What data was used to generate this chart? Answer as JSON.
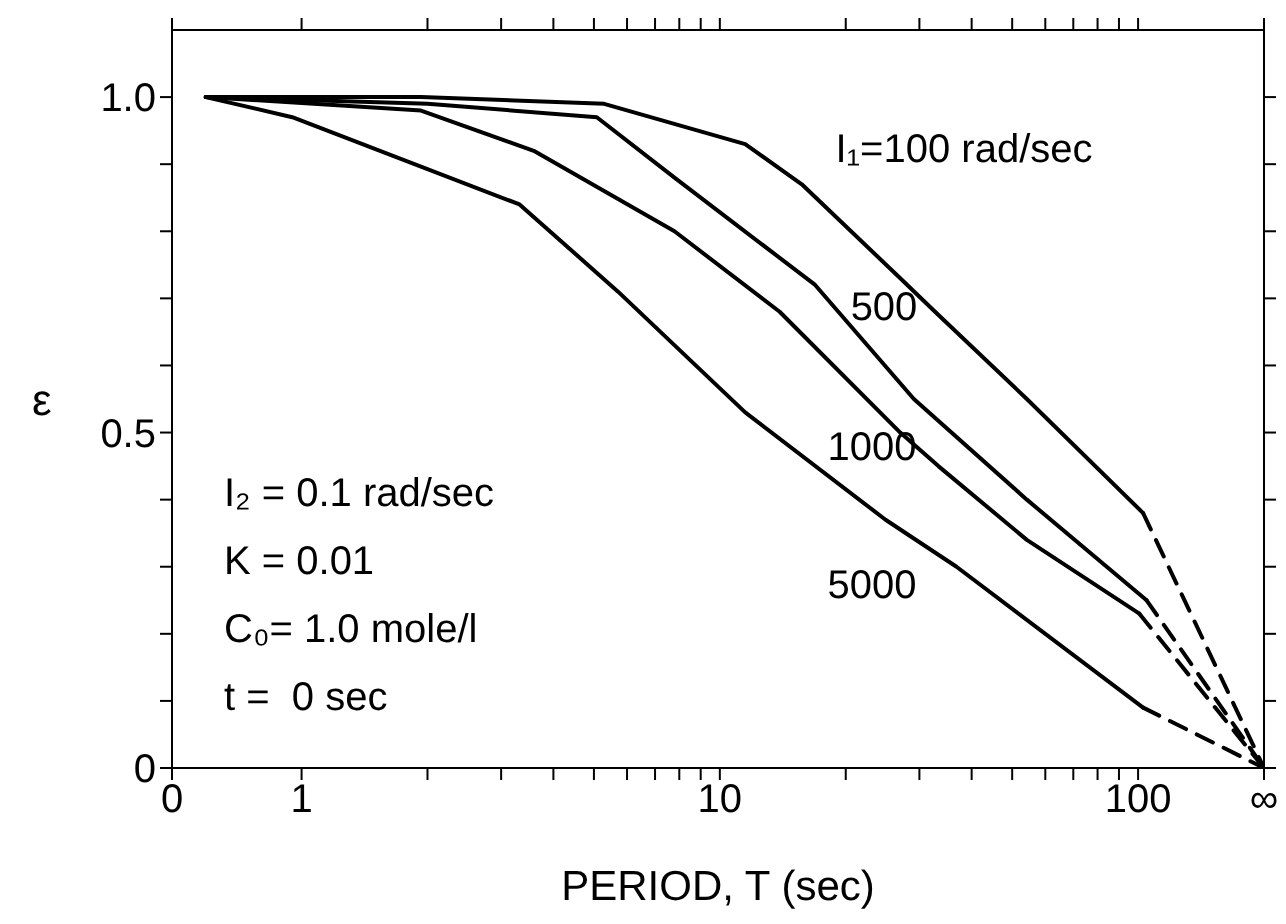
{
  "chart_data": {
    "type": "line",
    "xlabel": "PERIOD, T (sec)",
    "ylabel": "ε",
    "log": "x",
    "legend": false,
    "marker": "none",
    "line_style": "solid",
    "xlim": [
      0.49,
      200
    ],
    "xticks": [
      {
        "value": 0.49,
        "label": "0"
      },
      1,
      {
        "value": 2,
        "label": null
      },
      {
        "value": 3,
        "label": null
      },
      {
        "value": 4,
        "label": null
      },
      {
        "value": 5,
        "label": null
      },
      {
        "value": 6,
        "label": null
      },
      {
        "value": 7,
        "label": null
      },
      {
        "value": 8,
        "label": null
      },
      {
        "value": 9,
        "label": null
      },
      10,
      {
        "value": 20,
        "label": null
      },
      {
        "value": 30,
        "label": null
      },
      {
        "value": 40,
        "label": null
      },
      {
        "value": 50,
        "label": null
      },
      {
        "value": 60,
        "label": null
      },
      {
        "value": 70,
        "label": null
      },
      {
        "value": 80,
        "label": null
      },
      {
        "value": 90,
        "label": null
      },
      100,
      {
        "value": 200,
        "label": "∞"
      }
    ],
    "ylim": [
      0,
      1.1
    ],
    "yticks": [
      0,
      {
        "value": 0.1,
        "label": null
      },
      {
        "value": 0.2,
        "label": null
      },
      {
        "value": 0.3,
        "label": null
      },
      {
        "value": 0.4,
        "label": null
      },
      0.5,
      {
        "value": 0.6,
        "label": null
      },
      {
        "value": 0.7,
        "label": null
      },
      {
        "value": 0.8,
        "label": null
      },
      {
        "value": 0.9,
        "label": null
      },
      {
        "value": 1,
        "label": "1.0"
      }
    ],
    "series": [
      {
        "name": "I₁=100 rad/sec",
        "color": "#000000",
        "x": [
          0.59,
          1.93,
          5.29,
          11.5,
          15.7,
          27,
          32.7,
          54.2,
          102.8
        ],
        "values": [
          1.0,
          1.0,
          0.99,
          0.93,
          0.87,
          0.73,
          0.68,
          0.55,
          0.38
        ]
      },
      {
        "color": "#000000",
        "line_style": "dashed",
        "x": [
          102.8,
          200
        ],
        "values": [
          0.38,
          0
        ]
      },
      {
        "name": "500",
        "color": "#000000",
        "x": [
          0.59,
          2.0,
          5.08,
          7.79,
          16.9,
          29.1,
          54.2,
          104.8
        ],
        "values": [
          1.0,
          0.99,
          0.97,
          0.88,
          0.72,
          0.55,
          0.4,
          0.25
        ]
      },
      {
        "color": "#000000",
        "line_style": "dashed",
        "x": [
          104.8,
          200
        ],
        "values": [
          0.25,
          0
        ]
      },
      {
        "name": "1000",
        "color": "#000000",
        "x": [
          0.59,
          1.93,
          3.59,
          7.79,
          13.9,
          27,
          33.3,
          54.2,
          100.7
        ],
        "values": [
          1.0,
          0.98,
          0.92,
          0.8,
          0.68,
          0.5,
          0.45,
          0.34,
          0.23
        ]
      },
      {
        "color": "#000000",
        "line_style": "dashed",
        "x": [
          100.7,
          200
        ],
        "values": [
          0.23,
          0
        ]
      },
      {
        "name": "5000",
        "color": "#000000",
        "x": [
          0.59,
          0.95,
          3.32,
          5.71,
          11.5,
          24.9,
          36.8,
          102.8
        ],
        "values": [
          1.0,
          0.97,
          0.84,
          0.71,
          0.53,
          0.37,
          0.3,
          0.09
        ]
      },
      {
        "color": "#000000",
        "line_style": "dashed",
        "x": [
          102.8,
          200
        ],
        "values": [
          0.09,
          0
        ]
      }
    ],
    "annotations": [
      "I₂ = 0.1 rad/sec",
      "K = 0.01",
      "C₀= 1.0 mole/l",
      "t =  0 sec"
    ]
  }
}
